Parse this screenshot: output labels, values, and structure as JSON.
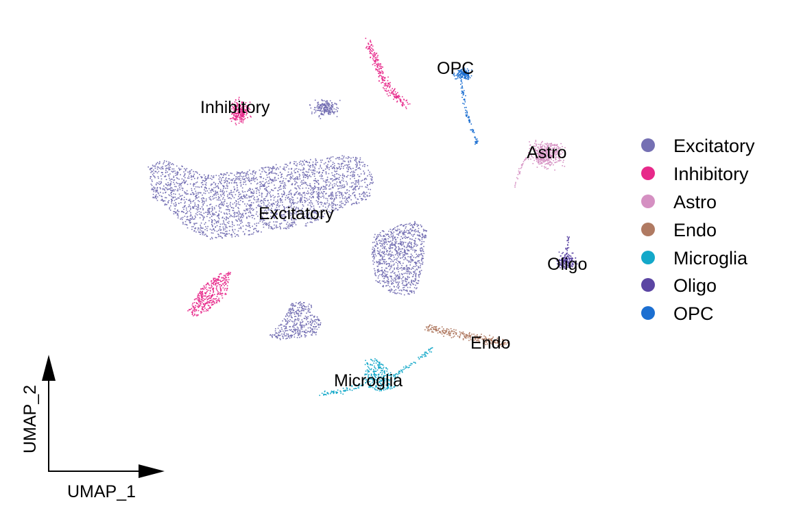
{
  "chart_data": {
    "type": "scatter",
    "xlabel": "UMAP_1",
    "ylabel": "UMAP_2",
    "grid": false,
    "legend_position": "right",
    "series": [
      {
        "name": "Excitatory",
        "color": "#7570B3"
      },
      {
        "name": "Inhibitory",
        "color": "#E7298A"
      },
      {
        "name": "Astro",
        "color": "#D590C2"
      },
      {
        "name": "Endo",
        "color": "#B07A62"
      },
      {
        "name": "Microglia",
        "color": "#13A8C9"
      },
      {
        "name": "Oligo",
        "color": "#5B45A3"
      },
      {
        "name": "OPC",
        "color": "#1C6FD1"
      }
    ],
    "cluster_labels": [
      {
        "text": "Inhibitory",
        "series": "Inhibitory"
      },
      {
        "text": "OPC",
        "series": "OPC"
      },
      {
        "text": "Astro",
        "series": "Astro"
      },
      {
        "text": "Excitatory",
        "series": "Excitatory"
      },
      {
        "text": "Oligo",
        "series": "Oligo"
      },
      {
        "text": "Endo",
        "series": "Endo"
      },
      {
        "text": "Microglia",
        "series": "Microglia"
      }
    ]
  }
}
